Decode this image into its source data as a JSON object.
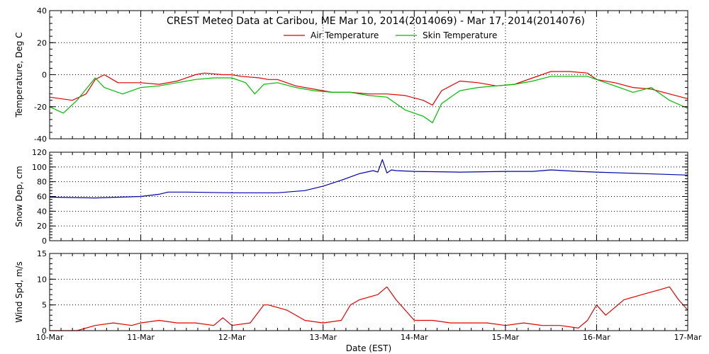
{
  "chart_data": {
    "type": "line",
    "title": "CREST Meteo Data at Caribou, ME   Mar 10, 2014(2014069) - Mar 17, 2014(2014076)",
    "xlabel": "Date (EST)",
    "x_tick_labels": [
      "10-Mar",
      "11-Mar",
      "12-Mar",
      "13-Mar",
      "14-Mar",
      "15-Mar",
      "16-Mar",
      "17-Mar"
    ],
    "xlim_days": [
      0,
      7
    ],
    "grid": true,
    "panels": [
      {
        "name": "temperature",
        "ylabel": "Temperature, Deg C",
        "ylim": [
          -40,
          40
        ],
        "yticks": [
          -40,
          -20,
          0,
          20,
          40
        ],
        "legend": {
          "placement": "top-center",
          "entries": [
            "Air Temperature",
            "Skin Temperature"
          ]
        },
        "series": [
          {
            "name": "Air Temperature",
            "color": "#e00000",
            "x": [
              0,
              0.25,
              0.4,
              0.5,
              0.6,
              0.75,
              0.9,
              1.0,
              1.2,
              1.4,
              1.6,
              1.7,
              1.9,
              2.0,
              2.1,
              2.3,
              2.4,
              2.5,
              2.7,
              2.9,
              3.1,
              3.3,
              3.5,
              3.7,
              3.9,
              4.1,
              4.2,
              4.3,
              4.5,
              4.7,
              4.9,
              5.1,
              5.3,
              5.5,
              5.7,
              5.9,
              6.0,
              6.2,
              6.4,
              6.6,
              6.8,
              7.0
            ],
            "y": [
              -14,
              -16,
              -12,
              -3,
              0,
              -5,
              -5,
              -5,
              -6,
              -4,
              0,
              1,
              0,
              0,
              -1,
              -2,
              -3,
              -3,
              -7,
              -9,
              -11,
              -11,
              -12,
              -12,
              -13,
              -16,
              -19,
              -10,
              -4,
              -5,
              -7,
              -6,
              -2,
              2,
              2,
              1,
              -3,
              -5,
              -8,
              -9,
              -12,
              -15
            ]
          },
          {
            "name": "Skin Temperature",
            "color": "#00bb00",
            "x": [
              0,
              0.15,
              0.3,
              0.5,
              0.6,
              0.8,
              1.0,
              1.2,
              1.4,
              1.6,
              1.8,
              2.0,
              2.15,
              2.25,
              2.35,
              2.5,
              2.7,
              2.9,
              3.1,
              3.3,
              3.5,
              3.7,
              3.9,
              4.1,
              4.2,
              4.3,
              4.5,
              4.7,
              4.9,
              5.1,
              5.3,
              5.5,
              5.7,
              5.9,
              6.0,
              6.2,
              6.4,
              6.6,
              6.8,
              7.0
            ],
            "y": [
              -20,
              -24,
              -16,
              -2,
              -8,
              -12,
              -8,
              -7,
              -5,
              -3,
              -2,
              -2,
              -5,
              -12,
              -6,
              -5,
              -8,
              -10,
              -11,
              -11,
              -13,
              -14,
              -22,
              -26,
              -30,
              -18,
              -10,
              -8,
              -7,
              -6,
              -4,
              -1,
              -1,
              -1,
              -3,
              -7,
              -11,
              -8,
              -16,
              -21
            ]
          }
        ]
      },
      {
        "name": "snow-depth",
        "ylabel": "Snow Dep, cm",
        "ylim": [
          0,
          120
        ],
        "yticks": [
          0,
          20,
          40,
          60,
          80,
          100,
          120
        ],
        "series": [
          {
            "name": "",
            "color": "#0000aa",
            "x": [
              0,
              0.5,
              1.0,
              1.2,
              1.3,
              1.5,
              2.0,
              2.5,
              2.8,
              3.0,
              3.2,
              3.4,
              3.55,
              3.6,
              3.65,
              3.7,
              3.75,
              3.8,
              4.0,
              4.5,
              5.0,
              5.3,
              5.5,
              5.8,
              6.0,
              6.5,
              7.0
            ],
            "y": [
              59,
              58,
              60,
              63,
              66,
              66,
              65,
              65,
              68,
              74,
              82,
              91,
              95,
              93,
              110,
              92,
              96,
              95,
              94,
              93,
              94,
              94,
              96,
              94,
              93,
              91,
              89
            ]
          }
        ]
      },
      {
        "name": "wind-speed",
        "ylabel": "Wind Spd, m/s",
        "ylim": [
          0,
          15
        ],
        "yticks": [
          0,
          5,
          10,
          15
        ],
        "series": [
          {
            "name": "",
            "color": "#e00000",
            "x": [
              0,
              0.3,
              0.5,
              0.7,
              0.9,
              1.0,
              1.2,
              1.4,
              1.6,
              1.8,
              1.9,
              2.0,
              2.2,
              2.35,
              2.4,
              2.6,
              2.8,
              3.0,
              3.2,
              3.3,
              3.4,
              3.6,
              3.7,
              3.8,
              3.9,
              4.0,
              4.2,
              4.4,
              4.6,
              4.8,
              5.0,
              5.2,
              5.4,
              5.6,
              5.8,
              5.9,
              6.0,
              6.1,
              6.3,
              6.5,
              6.7,
              6.8,
              6.9,
              7.0
            ],
            "y": [
              0,
              0,
              1,
              1.5,
              1,
              1.5,
              2,
              1.5,
              1.5,
              1,
              2.5,
              1,
              1.5,
              5,
              5,
              4,
              2,
              1.5,
              2,
              5,
              6,
              7,
              8.5,
              6,
              4,
              2,
              2,
              1.5,
              1.5,
              1.5,
              1,
              1.5,
              1,
              1,
              0.5,
              2,
              5,
              3,
              6,
              7,
              8,
              8.5,
              6,
              4
            ]
          }
        ]
      }
    ]
  }
}
